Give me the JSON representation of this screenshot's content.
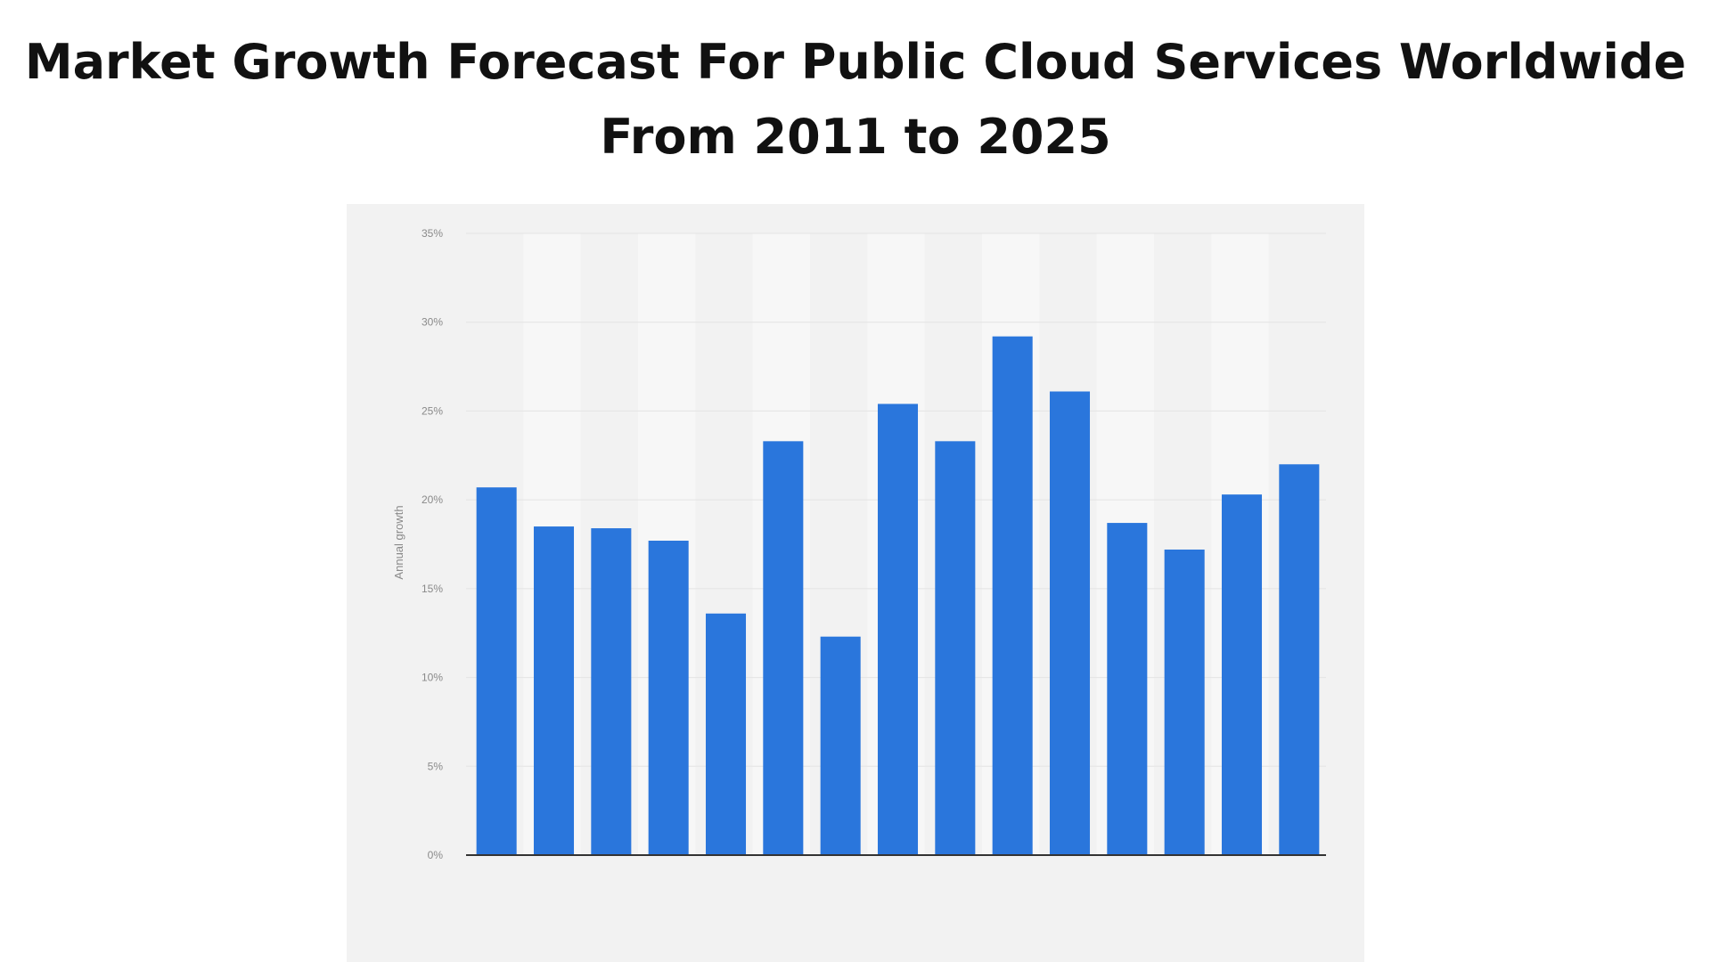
{
  "title_line1": "Market Growth Forecast For Public Cloud Services Worldwide",
  "title_line2": "From 2011 to 2025",
  "chart_data": {
    "type": "bar",
    "title": "Market Growth Forecast For Public Cloud Services Worldwide From 2011 to 2025",
    "xlabel": "",
    "ylabel": "Annual growth",
    "ylim": [
      0,
      35
    ],
    "yticks": [
      "0%",
      "5%",
      "10%",
      "15%",
      "20%",
      "25%",
      "30%",
      "35%"
    ],
    "grid": true,
    "values": [
      20.7,
      18.5,
      18.4,
      17.7,
      13.6,
      23.3,
      12.3,
      25.4,
      23.3,
      29.2,
      26.1,
      18.7,
      17.2,
      20.3,
      22.0
    ],
    "bar_color": "#2a76dc"
  }
}
